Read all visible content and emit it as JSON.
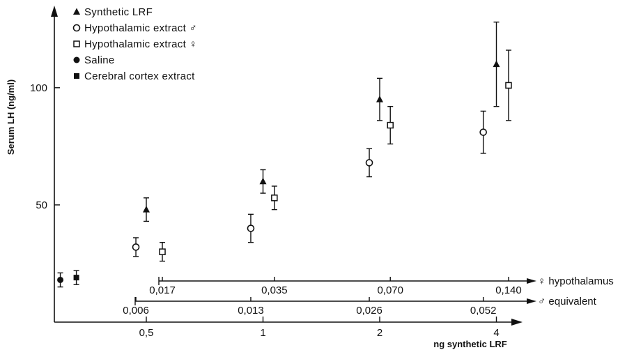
{
  "chart_data": {
    "type": "scatter",
    "title": "",
    "ylabel": "Serum LH (ng/ml)",
    "xlabel": "ng synthetic LRF",
    "x_scale": "log2",
    "x_ticks": [
      "0,5",
      "1",
      "2",
      "4"
    ],
    "y_ticks": [
      "50",
      "100"
    ],
    "ylim": [
      0,
      130
    ],
    "grid": false,
    "legend_position": "top-left",
    "legend": [
      {
        "label": "Synthetic LRF",
        "marker": "filled-triangle"
      },
      {
        "label": "Hypothalamic extract ♂",
        "marker": "open-circle"
      },
      {
        "label": "Hypothalamic extract ♀",
        "marker": "open-square"
      },
      {
        "label": "Saline",
        "marker": "filled-circle"
      },
      {
        "label": "Cerebral cortex extract",
        "marker": "filled-square"
      }
    ],
    "series": [
      {
        "name": "Synthetic LRF",
        "marker": "filled-triangle",
        "points": [
          {
            "x": 0.5,
            "y": 48,
            "err": 5
          },
          {
            "x": 1,
            "y": 60,
            "err": 5
          },
          {
            "x": 2,
            "y": 95,
            "err": 9
          },
          {
            "x": 4,
            "y": 110,
            "err": 18
          }
        ]
      },
      {
        "name": "Hypothalamic extract ♂",
        "marker": "open-circle",
        "points": [
          {
            "x": 0.47,
            "y": 32,
            "err": 4
          },
          {
            "x": 0.93,
            "y": 40,
            "err": 6
          },
          {
            "x": 1.88,
            "y": 68,
            "err": 6
          },
          {
            "x": 3.7,
            "y": 81,
            "err": 9
          }
        ]
      },
      {
        "name": "Hypothalamic extract ♀",
        "marker": "open-square",
        "points": [
          {
            "x": 0.55,
            "y": 30,
            "err": 4
          },
          {
            "x": 1.07,
            "y": 53,
            "err": 5
          },
          {
            "x": 2.13,
            "y": 84,
            "err": 8
          },
          {
            "x": 4.3,
            "y": 101,
            "err": 15
          }
        ]
      },
      {
        "name": "Saline",
        "marker": "filled-circle",
        "points": [
          {
            "x": 0.3,
            "y": 18,
            "err": 3
          }
        ]
      },
      {
        "name": "Cerebral cortex extract",
        "marker": "filled-square",
        "points": [
          {
            "x": 0.33,
            "y": 19,
            "err": 3
          }
        ]
      }
    ],
    "secondary_scales": [
      {
        "label": "♀ hypothalamus",
        "ticks": [
          {
            "x": 0.55,
            "label": "0,017"
          },
          {
            "x": 1.07,
            "label": "0,035"
          },
          {
            "x": 2.13,
            "label": "0,070"
          },
          {
            "x": 4.3,
            "label": "0,140"
          }
        ]
      },
      {
        "label": "♂ equivalent",
        "ticks": [
          {
            "x": 0.47,
            "label": "0,006"
          },
          {
            "x": 0.93,
            "label": "0,013"
          },
          {
            "x": 1.88,
            "label": "0,026"
          },
          {
            "x": 3.7,
            "label": "0,052"
          }
        ]
      }
    ]
  }
}
